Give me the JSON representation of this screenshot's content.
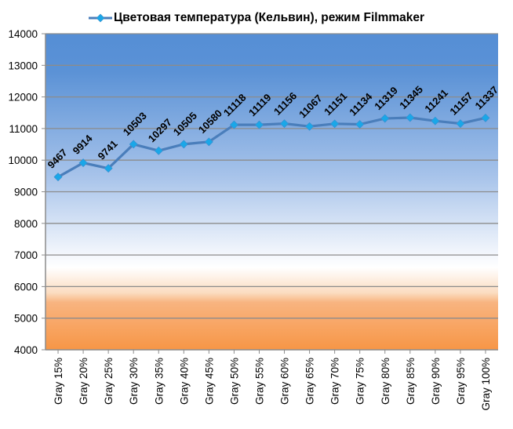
{
  "chart_data": {
    "type": "line",
    "title": "",
    "legend": {
      "position": "top",
      "entries": [
        "Цветовая температура (Кельвин), режим Filmmaker"
      ]
    },
    "categories": [
      "Gray 15%",
      "Gray 20%",
      "Gray 25%",
      "Gray 30%",
      "Gray 35%",
      "Gray 40%",
      "Gray 45%",
      "Gray 50%",
      "Gray 55%",
      "Gray 60%",
      "Gray 65%",
      "Gray 70%",
      "Gray 75%",
      "Gray 80%",
      "Gray 85%",
      "Gray 90%",
      "Gray 95%",
      "Gray 100%"
    ],
    "series": [
      {
        "name": "Цветовая температура (Кельвин), режим Filmmaker",
        "values": [
          9467,
          9914,
          9741,
          10503,
          10297,
          10505,
          10580,
          11118,
          11119,
          11156,
          11067,
          11151,
          11134,
          11319,
          11345,
          11241,
          11157,
          11337
        ],
        "line_color": "#4a7ebb",
        "marker_color": "#1aa7e8",
        "marker": "diamond",
        "data_labels": true
      }
    ],
    "xlabel": "",
    "ylabel": "",
    "ylim": [
      4000,
      14000
    ],
    "yticks": [
      4000,
      5000,
      6000,
      7000,
      8000,
      9000,
      10000,
      11000,
      12000,
      13000,
      14000
    ],
    "grid": true,
    "background_gradient": {
      "top": "#558ed5",
      "middle_white_at": 6600,
      "bottom": "#f79646"
    }
  }
}
